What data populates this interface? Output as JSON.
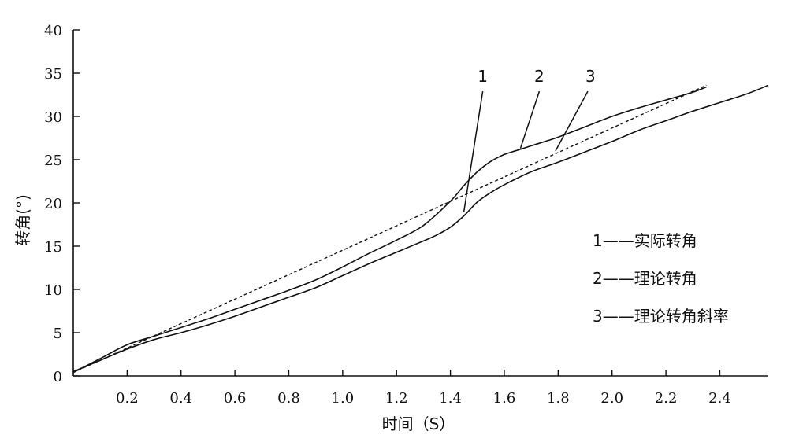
{
  "chart_data": {
    "type": "line",
    "xlabel": "时间（S）",
    "ylabel": "转角(°)",
    "xlim": [
      0,
      2.58
    ],
    "ylim": [
      0,
      40
    ],
    "x_ticks": [
      {
        "value": 0.2,
        "label": "0.2"
      },
      {
        "value": 0.4,
        "label": "0.4"
      },
      {
        "value": 0.6,
        "label": "0.6"
      },
      {
        "value": 0.8,
        "label": "0.8"
      },
      {
        "value": 1.0,
        "label": "1.0"
      },
      {
        "value": 1.2,
        "label": "1.2"
      },
      {
        "value": 1.4,
        "label": "1.4"
      },
      {
        "value": 1.6,
        "label": "1.6"
      },
      {
        "value": 1.8,
        "label": "1.8"
      },
      {
        "value": 2.0,
        "label": "2.0"
      },
      {
        "value": 2.2,
        "label": "2.2"
      },
      {
        "value": 2.4,
        "label": "2.4"
      }
    ],
    "y_ticks": [
      {
        "value": 0,
        "label": "0"
      },
      {
        "value": 5,
        "label": "5"
      },
      {
        "value": 10,
        "label": "10"
      },
      {
        "value": 15,
        "label": "15"
      },
      {
        "value": 20,
        "label": "20"
      },
      {
        "value": 25,
        "label": "25"
      },
      {
        "value": 30,
        "label": "30"
      },
      {
        "value": 35,
        "label": "35"
      },
      {
        "value": 40,
        "label": "40"
      }
    ],
    "grid": false,
    "legend_position": "right",
    "legend": [
      {
        "number": "1",
        "dash": "——",
        "label": "实际转角"
      },
      {
        "number": "2",
        "dash": "——",
        "label": "理论转角"
      },
      {
        "number": "3",
        "dash": "——",
        "label": "理论转角斜率"
      }
    ],
    "series": [
      {
        "number": "1",
        "style": "solid",
        "color": "#111111",
        "x": [
          0.0,
          0.1,
          0.2,
          0.3,
          0.4,
          0.5,
          0.6,
          0.7,
          0.8,
          0.9,
          1.0,
          1.1,
          1.2,
          1.3,
          1.35,
          1.4,
          1.45,
          1.5,
          1.55,
          1.6,
          1.7,
          1.8,
          1.9,
          2.0,
          2.1,
          2.2,
          2.3,
          2.4,
          2.5,
          2.58
        ],
        "y": [
          0.5,
          1.8,
          3.1,
          4.2,
          5.0,
          5.9,
          6.9,
          8.0,
          9.1,
          10.2,
          11.6,
          13.0,
          14.3,
          15.6,
          16.3,
          17.2,
          18.5,
          20.1,
          21.2,
          22.1,
          23.6,
          24.7,
          25.9,
          27.1,
          28.4,
          29.5,
          30.6,
          31.6,
          32.6,
          33.6
        ]
      },
      {
        "number": "2",
        "style": "solid",
        "color": "#111111",
        "x": [
          0.0,
          0.1,
          0.2,
          0.3,
          0.4,
          0.5,
          0.6,
          0.7,
          0.8,
          0.9,
          1.0,
          1.1,
          1.2,
          1.3,
          1.4,
          1.45,
          1.5,
          1.55,
          1.6,
          1.65,
          1.7,
          1.8,
          1.9,
          2.0,
          2.1,
          2.2,
          2.3,
          2.35
        ],
        "y": [
          0.4,
          2.0,
          3.6,
          4.6,
          5.6,
          6.6,
          7.7,
          8.8,
          9.9,
          11.1,
          12.6,
          14.2,
          15.7,
          17.4,
          20.2,
          22.0,
          23.6,
          24.8,
          25.6,
          26.1,
          26.6,
          27.6,
          28.8,
          30.0,
          31.0,
          31.9,
          32.8,
          33.4
        ]
      },
      {
        "number": "3",
        "style": "dashed",
        "color": "#111111",
        "x": [
          0.0,
          2.35
        ],
        "y": [
          0.4,
          33.6
        ]
      }
    ],
    "annotations": [
      {
        "text": "1",
        "label_at": [
          1.52,
          34.0
        ],
        "line_from": [
          1.52,
          32.9
        ],
        "line_to": [
          1.45,
          19.0
        ]
      },
      {
        "text": "2",
        "label_at": [
          1.73,
          34.0
        ],
        "line_from": [
          1.73,
          32.9
        ],
        "line_to": [
          1.66,
          26.3
        ]
      },
      {
        "text": "3",
        "label_at": [
          1.92,
          34.0
        ],
        "line_from": [
          1.91,
          32.9
        ],
        "line_to": [
          1.79,
          26.0
        ]
      }
    ]
  }
}
